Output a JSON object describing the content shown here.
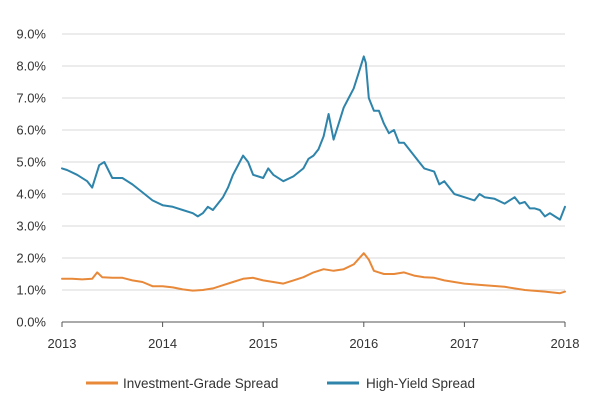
{
  "chart_data": {
    "type": "line",
    "title": "",
    "xlabel": "",
    "ylabel": "",
    "x_ticks": [
      "2013",
      "2014",
      "2015",
      "2016",
      "2017",
      "2018"
    ],
    "y_ticks": [
      "0.0%",
      "1.0%",
      "2.0%",
      "3.0%",
      "4.0%",
      "5.0%",
      "6.0%",
      "7.0%",
      "8.0%",
      "9.0%"
    ],
    "xlim": [
      2013,
      2018
    ],
    "ylim": [
      0,
      9
    ],
    "grid": "horizontal",
    "legend_position": "bottom",
    "series": [
      {
        "name": "Investment-Grade Spread",
        "color": "#e8893a",
        "x": [
          2013.0,
          2013.1,
          2013.2,
          2013.3,
          2013.35,
          2013.4,
          2013.5,
          2013.6,
          2013.7,
          2013.8,
          2013.9,
          2014.0,
          2014.1,
          2014.2,
          2014.3,
          2014.4,
          2014.5,
          2014.6,
          2014.7,
          2014.8,
          2014.9,
          2015.0,
          2015.1,
          2015.2,
          2015.3,
          2015.4,
          2015.5,
          2015.6,
          2015.7,
          2015.8,
          2015.9,
          2016.0,
          2016.05,
          2016.1,
          2016.2,
          2016.3,
          2016.4,
          2016.5,
          2016.6,
          2016.7,
          2016.8,
          2016.9,
          2017.0,
          2017.2,
          2017.4,
          2017.6,
          2017.8,
          2017.95,
          2018.0
        ],
        "values": [
          1.35,
          1.35,
          1.33,
          1.35,
          1.55,
          1.4,
          1.38,
          1.38,
          1.3,
          1.25,
          1.12,
          1.12,
          1.08,
          1.02,
          0.98,
          1.0,
          1.05,
          1.15,
          1.25,
          1.35,
          1.38,
          1.3,
          1.25,
          1.2,
          1.3,
          1.4,
          1.55,
          1.65,
          1.6,
          1.65,
          1.8,
          2.15,
          1.95,
          1.6,
          1.5,
          1.5,
          1.55,
          1.45,
          1.4,
          1.38,
          1.3,
          1.25,
          1.2,
          1.15,
          1.1,
          1.0,
          0.95,
          0.9,
          0.95
        ]
      },
      {
        "name": "High-Yield Spread",
        "color": "#2e84aa",
        "x": [
          2013.0,
          2013.05,
          2013.15,
          2013.25,
          2013.3,
          2013.37,
          2013.42,
          2013.5,
          2013.6,
          2013.7,
          2013.8,
          2013.9,
          2014.0,
          2014.1,
          2014.2,
          2014.3,
          2014.35,
          2014.4,
          2014.45,
          2014.5,
          2014.6,
          2014.65,
          2014.7,
          2014.8,
          2014.85,
          2014.9,
          2015.0,
          2015.05,
          2015.1,
          2015.2,
          2015.3,
          2015.4,
          2015.45,
          2015.5,
          2015.55,
          2015.6,
          2015.65,
          2015.7,
          2015.75,
          2015.8,
          2015.85,
          2015.9,
          2015.95,
          2016.0,
          2016.02,
          2016.05,
          2016.1,
          2016.15,
          2016.2,
          2016.25,
          2016.3,
          2016.35,
          2016.4,
          2016.45,
          2016.5,
          2016.55,
          2016.6,
          2016.7,
          2016.75,
          2016.8,
          2016.9,
          2017.0,
          2017.1,
          2017.15,
          2017.2,
          2017.3,
          2017.4,
          2017.5,
          2017.55,
          2017.6,
          2017.65,
          2017.7,
          2017.75,
          2017.8,
          2017.85,
          2017.9,
          2017.95,
          2018.0
        ],
        "values": [
          4.8,
          4.75,
          4.6,
          4.4,
          4.2,
          4.9,
          5.0,
          4.5,
          4.5,
          4.3,
          4.05,
          3.8,
          3.65,
          3.6,
          3.5,
          3.4,
          3.3,
          3.4,
          3.6,
          3.5,
          3.9,
          4.2,
          4.6,
          5.2,
          5.0,
          4.6,
          4.5,
          4.8,
          4.6,
          4.4,
          4.55,
          4.8,
          5.1,
          5.2,
          5.4,
          5.8,
          6.5,
          5.7,
          6.2,
          6.7,
          7.0,
          7.3,
          7.8,
          8.3,
          8.1,
          7.0,
          6.6,
          6.6,
          6.2,
          5.9,
          6.0,
          5.6,
          5.6,
          5.4,
          5.2,
          5.0,
          4.8,
          4.7,
          4.3,
          4.4,
          4.0,
          3.9,
          3.8,
          4.0,
          3.9,
          3.85,
          3.7,
          3.9,
          3.7,
          3.75,
          3.55,
          3.55,
          3.5,
          3.3,
          3.4,
          3.3,
          3.2,
          3.6
        ]
      }
    ]
  }
}
